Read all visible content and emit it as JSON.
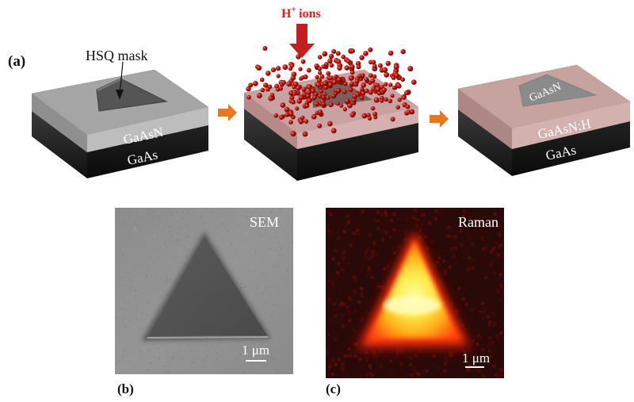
{
  "panel_a": {
    "label": "(a)",
    "block1": {
      "mask_label": "HSQ mask",
      "top_layer": "GaAsN",
      "bottom_layer": "GaAs"
    },
    "block2": {
      "ions_label_main": "H",
      "ions_label_sup": "+",
      "ions_label_rest": " ions"
    },
    "block3": {
      "triangle_label": "GaAsN",
      "top_layer": "GaAsN:H",
      "bottom_layer": "GaAs"
    }
  },
  "panel_b": {
    "label": "(b)",
    "title": "SEM",
    "scalebar": "1 μm"
  },
  "panel_c": {
    "label": "(c)",
    "title": "Raman",
    "scalebar": "1 μm"
  },
  "colors": {
    "arrow_orange": "#e87722",
    "ion_arrow_red": "#c0201e",
    "ions_text": "#e0201e",
    "hydrogenated_layer": "#c9a3a0",
    "gaasn_layer": "#a9a9a9",
    "gaas_layer": "#2e2e2e"
  }
}
